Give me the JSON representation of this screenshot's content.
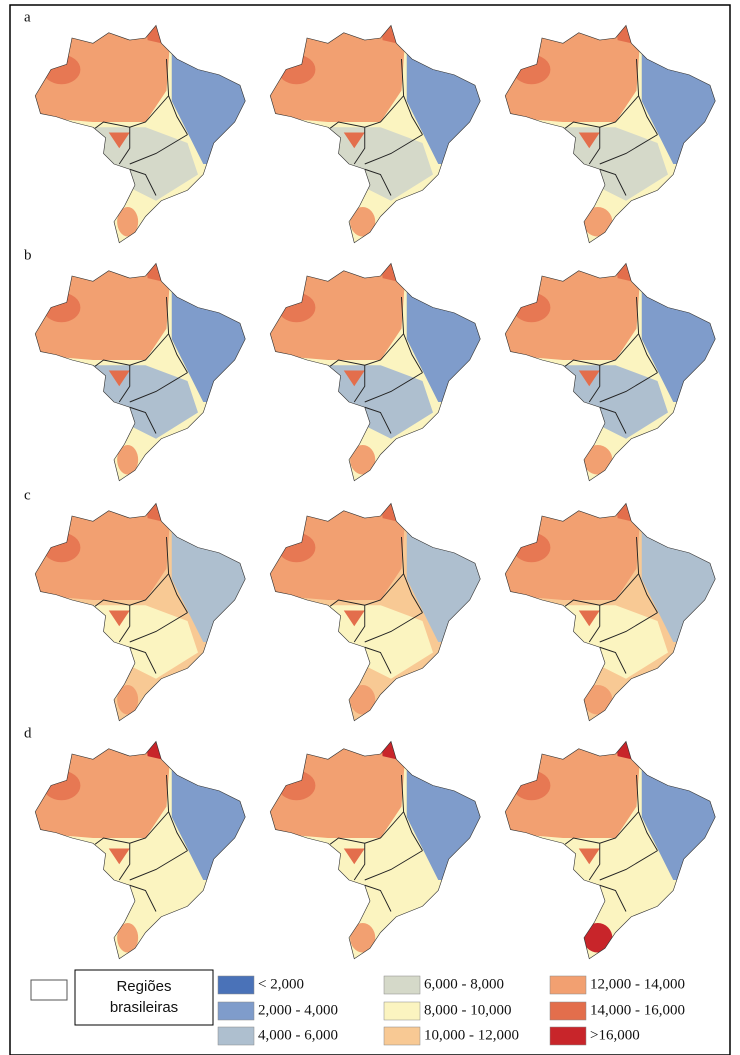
{
  "panels": {
    "rows": [
      "a",
      "b",
      "c",
      "d"
    ]
  },
  "legend": {
    "region_label": [
      "Regiões",
      "brasileiras"
    ],
    "items": [
      {
        "label": "< 2,000",
        "color": "#4a72b8"
      },
      {
        "label": "2,000 - 4,000",
        "color": "#7f9ccb"
      },
      {
        "label": "4,000 - 6,000",
        "color": "#aebfcf"
      },
      {
        "label": "6,000 - 8,000",
        "color": "#d5d9c9"
      },
      {
        "label": "8,000 - 10,000",
        "color": "#fbf4c0"
      },
      {
        "label": "10,000 - 12,000",
        "color": "#f8c994"
      },
      {
        "label": "12,000 - 14,000",
        "color": "#f2a071"
      },
      {
        "label": "14,000 - 16,000",
        "color": "#e36e4c"
      },
      {
        "label": ">16,000",
        "color": "#c8252a"
      }
    ]
  }
}
